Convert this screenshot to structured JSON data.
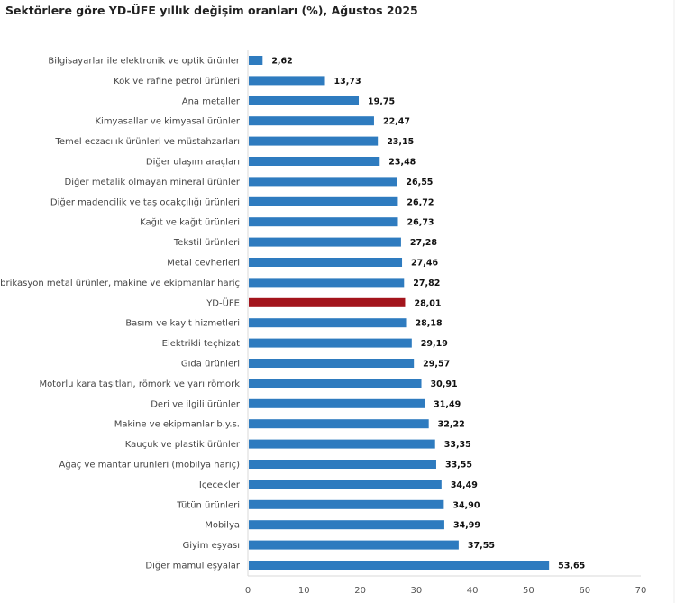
{
  "chart_data": {
    "type": "bar",
    "orientation": "horizontal",
    "title": "Sektörlere göre YD-ÜFE yıllık değişim oranları (%), Ağustos 2025",
    "categories": [
      "Bilgisayarlar ile elektronik ve optik ürünler",
      "Kok ve rafine petrol ürünleri",
      "Ana metaller",
      "Kimyasallar ve kimyasal ürünler",
      "Temel eczacılık ürünleri ve müstahzarları",
      "Diğer ulaşım araçları",
      "Diğer metalik olmayan mineral ürünler",
      "Diğer madencilik ve taş ocakçılığı ürünleri",
      "Kağıt ve kağıt ürünleri",
      "Tekstil ürünleri",
      "Metal cevherleri",
      "Fabrikasyon metal ürünler, makine ve ekipmanlar hariç",
      "YD-ÜFE",
      "Basım ve kayıt hizmetleri",
      "Elektrikli teçhizat",
      "Gıda ürünleri",
      "Motorlu kara taşıtları, römork ve yarı römork",
      "Deri ve ilgili ürünler",
      "Makine ve ekipmanlar b.y.s.",
      "Kauçuk ve plastik ürünler",
      "Ağaç ve mantar ürünleri (mobilya hariç)",
      "İçecekler",
      "Tütün ürünleri",
      "Mobilya",
      "Giyim eşyası",
      "Diğer mamul eşyalar"
    ],
    "values": [
      2.62,
      13.73,
      19.75,
      22.47,
      23.15,
      23.48,
      26.55,
      26.72,
      26.73,
      27.28,
      27.46,
      27.82,
      28.01,
      28.18,
      29.19,
      29.57,
      30.91,
      31.49,
      32.22,
      33.35,
      33.55,
      34.49,
      34.9,
      34.99,
      37.55,
      53.65
    ],
    "value_labels": [
      "2,62",
      "13,73",
      "19,75",
      "22,47",
      "23,15",
      "23,48",
      "26,55",
      "26,72",
      "26,73",
      "27,28",
      "27,46",
      "27,82",
      "28,01",
      "28,18",
      "29,19",
      "29,57",
      "30,91",
      "31,49",
      "32,22",
      "33,35",
      "33,55",
      "34,49",
      "34,90",
      "34,99",
      "37,55",
      "53,65"
    ],
    "highlight": "YD-ÜFE",
    "xlim": [
      0,
      70
    ],
    "xticks": [
      "0",
      "10",
      "20",
      "30",
      "40",
      "50",
      "60",
      "70"
    ],
    "grid": false,
    "colors": {
      "bar": "#2e7bbf",
      "highlight": "#a3141c"
    }
  }
}
